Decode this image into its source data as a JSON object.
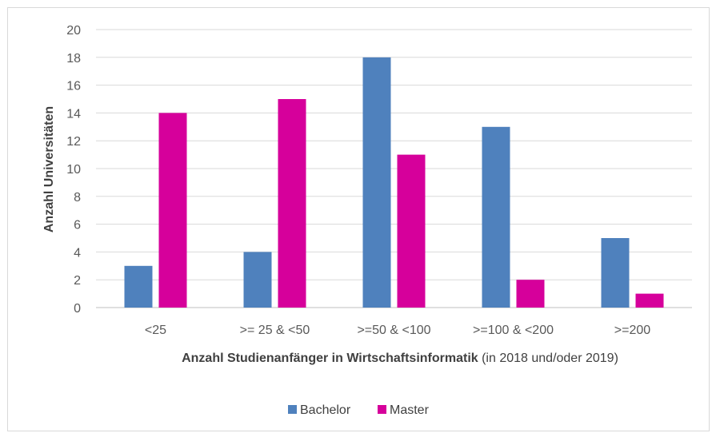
{
  "chart_data": {
    "type": "bar",
    "categories": [
      "<25",
      ">= 25 & <50",
      ">=50 & <100",
      ">=100 & <200",
      ">=200"
    ],
    "series": [
      {
        "name": "Bachelor",
        "color": "#4f81bd",
        "values": [
          3,
          4,
          18,
          13,
          5
        ]
      },
      {
        "name": "Master",
        "color": "#d6009b",
        "values": [
          14,
          15,
          11,
          2,
          1
        ]
      }
    ],
    "ylabel": "Anzahl Universitäten",
    "xlabel_bold": "Anzahl Studienanfänger in Wirtschaftsinformatik",
    "xlabel_rest": " (in 2018 und/oder 2019)",
    "ylim": [
      0,
      20
    ],
    "yticks": [
      0,
      2,
      4,
      6,
      8,
      10,
      12,
      14,
      16,
      18,
      20
    ],
    "grid": true,
    "legend": "bottom"
  }
}
